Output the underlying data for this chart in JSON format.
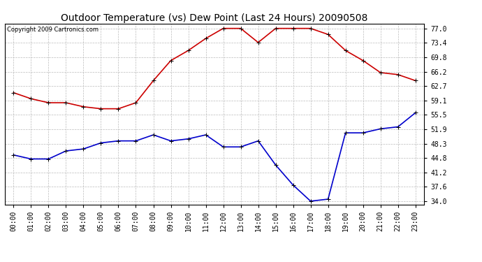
{
  "title": "Outdoor Temperature (vs) Dew Point (Last 24 Hours) 20090508",
  "copyright": "Copyright 2009 Cartronics.com",
  "x_labels": [
    "00:00",
    "01:00",
    "02:00",
    "03:00",
    "04:00",
    "05:00",
    "06:00",
    "07:00",
    "08:00",
    "09:00",
    "10:00",
    "11:00",
    "12:00",
    "13:00",
    "14:00",
    "15:00",
    "16:00",
    "17:00",
    "18:00",
    "19:00",
    "20:00",
    "21:00",
    "22:00",
    "23:00"
  ],
  "temp_data": [
    61.0,
    59.5,
    58.5,
    58.5,
    57.5,
    57.0,
    57.0,
    58.5,
    64.0,
    69.0,
    71.5,
    74.5,
    77.0,
    77.0,
    73.5,
    77.0,
    77.0,
    77.0,
    75.5,
    71.5,
    69.0,
    66.0,
    65.5,
    64.0
  ],
  "dew_data": [
    45.5,
    44.5,
    44.5,
    46.5,
    47.0,
    48.5,
    49.0,
    49.0,
    50.5,
    49.0,
    49.5,
    50.5,
    47.5,
    47.5,
    49.0,
    43.0,
    38.0,
    34.0,
    34.5,
    51.0,
    51.0,
    52.0,
    52.5,
    56.0
  ],
  "temp_color": "#cc0000",
  "dew_color": "#0000cc",
  "bg_color": "#ffffff",
  "plot_bg_color": "#ffffff",
  "grid_color": "#bbbbbb",
  "yticks": [
    34.0,
    37.6,
    41.2,
    44.8,
    48.3,
    51.9,
    55.5,
    59.1,
    62.7,
    66.2,
    69.8,
    73.4,
    77.0
  ],
  "ylim": [
    33.2,
    78.2
  ],
  "title_fontsize": 10,
  "axis_fontsize": 7,
  "copyright_fontsize": 6,
  "marker": "+",
  "marker_size": 4,
  "linewidth": 1.2
}
